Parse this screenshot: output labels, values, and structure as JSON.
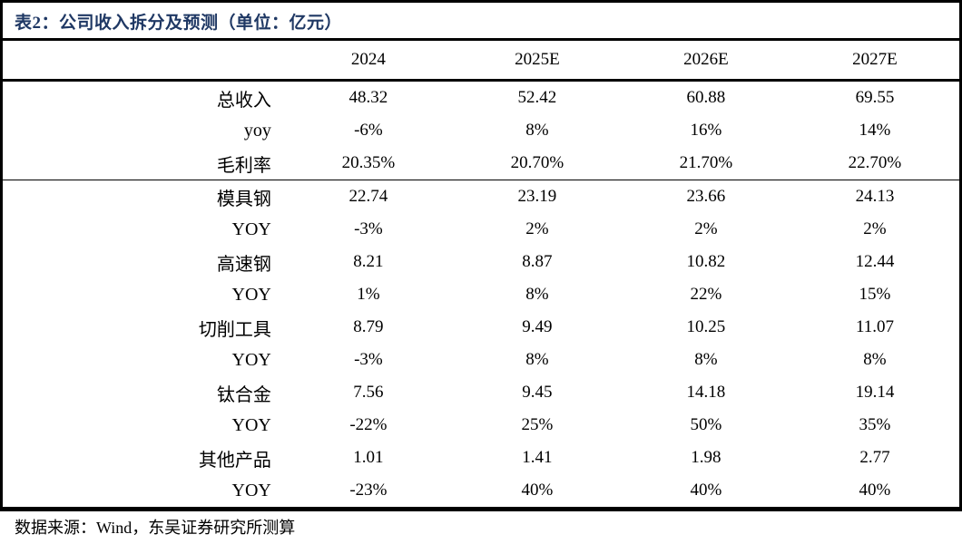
{
  "title": "表2：公司收入拆分及预测（单位：亿元）",
  "header": {
    "years": [
      "2024",
      "2025E",
      "2026E",
      "2027E"
    ]
  },
  "table": {
    "rows": [
      {
        "label": "总收入",
        "values": [
          "48.32",
          "52.42",
          "60.88",
          "69.55"
        ]
      },
      {
        "label": "yoy",
        "values": [
          "-6%",
          "8%",
          "16%",
          "14%"
        ]
      },
      {
        "label": "毛利率",
        "values": [
          "20.35%",
          "20.70%",
          "21.70%",
          "22.70%"
        ]
      },
      {
        "label": "模具钢",
        "values": [
          "22.74",
          "23.19",
          "23.66",
          "24.13"
        ]
      },
      {
        "label": "YOY",
        "values": [
          "-3%",
          "2%",
          "2%",
          "2%"
        ]
      },
      {
        "label": "高速钢",
        "values": [
          "8.21",
          "8.87",
          "10.82",
          "12.44"
        ]
      },
      {
        "label": "YOY",
        "values": [
          "1%",
          "8%",
          "22%",
          "15%"
        ]
      },
      {
        "label": "切削工具",
        "values": [
          "8.79",
          "9.49",
          "10.25",
          "11.07"
        ]
      },
      {
        "label": "YOY",
        "values": [
          "-3%",
          "8%",
          "8%",
          "8%"
        ]
      },
      {
        "label": "钛合金",
        "values": [
          "7.56",
          "9.45",
          "14.18",
          "19.14"
        ]
      },
      {
        "label": "YOY",
        "values": [
          "-22%",
          "25%",
          "50%",
          "35%"
        ]
      },
      {
        "label": "其他产品",
        "values": [
          "1.01",
          "1.41",
          "1.98",
          "2.77"
        ]
      },
      {
        "label": "YOY",
        "values": [
          "-23%",
          "40%",
          "40%",
          "40%"
        ]
      }
    ]
  },
  "footer": {
    "source": "数据来源：Wind，东吴证券研究所测算"
  },
  "colors": {
    "title_navy": "#1f3864",
    "border_black": "#000000",
    "text_black": "#000000",
    "background_white": "#ffffff"
  }
}
